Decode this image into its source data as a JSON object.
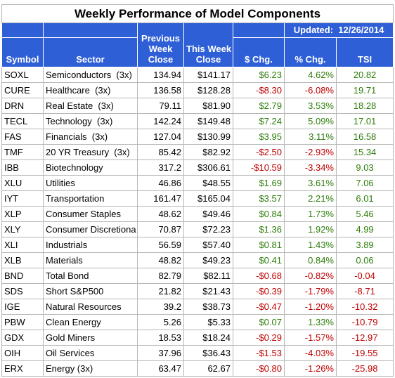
{
  "title": "Weekly Performance of Model Components",
  "updated_label": "Updated:",
  "updated_date": "12/26/2014",
  "headers": {
    "symbol": "Symbol",
    "sector": "Sector",
    "prev_line1": "Previous",
    "prev_line2": "Week",
    "prev_line3": "Close",
    "this_line1": "This Week",
    "this_line2": "Close",
    "dchg": "$ Chg.",
    "pchg": "% Chg.",
    "tsi": "TSI"
  },
  "colors": {
    "header_bg": "#2f5fd6",
    "positive": "#2e7d0a",
    "negative": "#c00000"
  },
  "rows": [
    {
      "symbol": "SOXL",
      "sector": "Semiconductors  (3x)",
      "prev": "134.94",
      "this": "$141.17",
      "dchg": "$6.23",
      "pchg": "4.62%",
      "tsi": "20.82",
      "dsign": "pos",
      "psign": "pos",
      "tsign": "pos"
    },
    {
      "symbol": "CURE",
      "sector": "Healthcare  (3x)",
      "prev": "136.58",
      "this": "$128.28",
      "dchg": "-$8.30",
      "pchg": "-6.08%",
      "tsi": "19.71",
      "dsign": "neg",
      "psign": "neg",
      "tsign": "pos"
    },
    {
      "symbol": "DRN",
      "sector": "Real Estate  (3x)",
      "prev": "79.11",
      "this": "$81.90",
      "dchg": "$2.79",
      "pchg": "3.53%",
      "tsi": "18.28",
      "dsign": "pos",
      "psign": "pos",
      "tsign": "pos"
    },
    {
      "symbol": "TECL",
      "sector": "Technology  (3x)",
      "prev": "142.24",
      "this": "$149.48",
      "dchg": "$7.24",
      "pchg": "5.09%",
      "tsi": "17.01",
      "dsign": "pos",
      "psign": "pos",
      "tsign": "pos"
    },
    {
      "symbol": "FAS",
      "sector": "Financials  (3x)",
      "prev": "127.04",
      "this": "$130.99",
      "dchg": "$3.95",
      "pchg": "3.11%",
      "tsi": "16.58",
      "dsign": "pos",
      "psign": "pos",
      "tsign": "pos"
    },
    {
      "symbol": "TMF",
      "sector": "20 YR Treasury  (3x)",
      "prev": "85.42",
      "this": "$82.92",
      "dchg": "-$2.50",
      "pchg": "-2.93%",
      "tsi": "15.34",
      "dsign": "neg",
      "psign": "neg",
      "tsign": "pos"
    },
    {
      "symbol": "IBB",
      "sector": "Biotechnology",
      "prev": "317.2",
      "this": "$306.61",
      "dchg": "-$10.59",
      "pchg": "-3.34%",
      "tsi": "9.03",
      "dsign": "neg",
      "psign": "neg",
      "tsign": "pos"
    },
    {
      "symbol": "XLU",
      "sector": "Utilities",
      "prev": "46.86",
      "this": "$48.55",
      "dchg": "$1.69",
      "pchg": "3.61%",
      "tsi": "7.06",
      "dsign": "pos",
      "psign": "pos",
      "tsign": "pos"
    },
    {
      "symbol": "IYT",
      "sector": "Transportation",
      "prev": "161.47",
      "this": "$165.04",
      "dchg": "$3.57",
      "pchg": "2.21%",
      "tsi": "6.01",
      "dsign": "pos",
      "psign": "pos",
      "tsign": "pos"
    },
    {
      "symbol": "XLP",
      "sector": "Consumer Staples",
      "prev": "48.62",
      "this": "$49.46",
      "dchg": "$0.84",
      "pchg": "1.73%",
      "tsi": "5.46",
      "dsign": "pos",
      "psign": "pos",
      "tsign": "pos"
    },
    {
      "symbol": "XLY",
      "sector": "Consumer Discretiona",
      "prev": "70.87",
      "this": "$72.23",
      "dchg": "$1.36",
      "pchg": "1.92%",
      "tsi": "4.99",
      "dsign": "pos",
      "psign": "pos",
      "tsign": "pos"
    },
    {
      "symbol": "XLI",
      "sector": "Industrials",
      "prev": "56.59",
      "this": "$57.40",
      "dchg": "$0.81",
      "pchg": "1.43%",
      "tsi": "3.89",
      "dsign": "pos",
      "psign": "pos",
      "tsign": "pos"
    },
    {
      "symbol": "XLB",
      "sector": "Materials",
      "prev": "48.82",
      "this": "$49.23",
      "dchg": "$0.41",
      "pchg": "0.84%",
      "tsi": "0.06",
      "dsign": "pos",
      "psign": "pos",
      "tsign": "pos"
    },
    {
      "symbol": "BND",
      "sector": "Total Bond",
      "prev": "82.79",
      "this": "$82.11",
      "dchg": "-$0.68",
      "pchg": "-0.82%",
      "tsi": "-0.04",
      "dsign": "neg",
      "psign": "neg",
      "tsign": "neg"
    },
    {
      "symbol": "SDS",
      "sector": "Short S&P500",
      "prev": "21.82",
      "this": "$21.43",
      "dchg": "-$0.39",
      "pchg": "-1.79%",
      "tsi": "-8.71",
      "dsign": "neg",
      "psign": "neg",
      "tsign": "neg"
    },
    {
      "symbol": "IGE",
      "sector": "Natural Resources",
      "prev": "39.2",
      "this": "$38.73",
      "dchg": "-$0.47",
      "pchg": "-1.20%",
      "tsi": "-10.32",
      "dsign": "neg",
      "psign": "neg",
      "tsign": "neg"
    },
    {
      "symbol": "PBW",
      "sector": "Clean Energy",
      "prev": "5.26",
      "this": "$5.33",
      "dchg": "$0.07",
      "pchg": "1.33%",
      "tsi": "-10.79",
      "dsign": "pos",
      "psign": "pos",
      "tsign": "neg"
    },
    {
      "symbol": "GDX",
      "sector": "Gold Miners",
      "prev": "18.53",
      "this": "$18.24",
      "dchg": "-$0.29",
      "pchg": "-1.57%",
      "tsi": "-12.97",
      "dsign": "neg",
      "psign": "neg",
      "tsign": "neg"
    },
    {
      "symbol": "OIH",
      "sector": "Oil Services",
      "prev": "37.96",
      "this": "$36.43",
      "dchg": "-$1.53",
      "pchg": "-4.03%",
      "tsi": "-19.55",
      "dsign": "neg",
      "psign": "neg",
      "tsign": "neg"
    },
    {
      "symbol": "ERX",
      "sector": "Energy (3x)",
      "prev": "63.47",
      "this": "62.67",
      "dchg": "-$0.80",
      "pchg": "-1.26%",
      "tsi": "-25.98",
      "dsign": "neg",
      "psign": "neg",
      "tsign": "neg"
    }
  ]
}
